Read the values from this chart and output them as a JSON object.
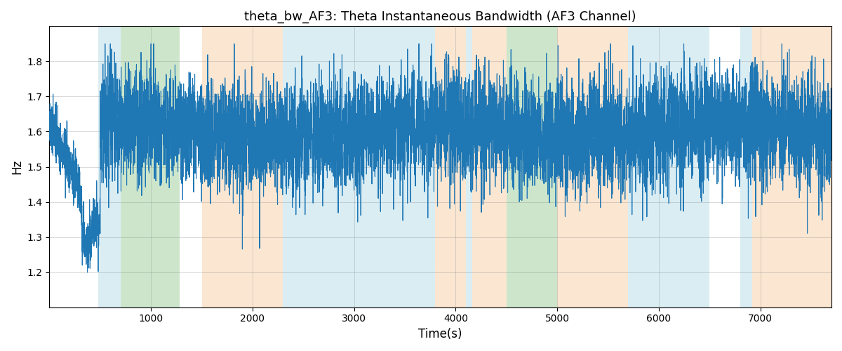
{
  "title": "theta_bw_AF3: Theta Instantaneous Bandwidth (AF3 Channel)",
  "xlabel": "Time(s)",
  "ylabel": "Hz",
  "xlim": [
    0,
    7700
  ],
  "ylim": [
    1.1,
    1.9
  ],
  "line_color": "#1f77b4",
  "line_width": 0.8,
  "colored_bands": [
    {
      "xmin": 480,
      "xmax": 700,
      "color": "#add8e6",
      "alpha": 0.45
    },
    {
      "xmin": 700,
      "xmax": 1280,
      "color": "#90c98c",
      "alpha": 0.45
    },
    {
      "xmin": 1500,
      "xmax": 2300,
      "color": "#f5c99a",
      "alpha": 0.45
    },
    {
      "xmin": 2300,
      "xmax": 3800,
      "color": "#add8e6",
      "alpha": 0.45
    },
    {
      "xmin": 3800,
      "xmax": 4100,
      "color": "#f5c99a",
      "alpha": 0.45
    },
    {
      "xmin": 4100,
      "xmax": 4160,
      "color": "#add8e6",
      "alpha": 0.45
    },
    {
      "xmin": 4160,
      "xmax": 4500,
      "color": "#f5c99a",
      "alpha": 0.45
    },
    {
      "xmin": 4500,
      "xmax": 5000,
      "color": "#90c98c",
      "alpha": 0.45
    },
    {
      "xmin": 5000,
      "xmax": 5700,
      "color": "#f5c99a",
      "alpha": 0.45
    },
    {
      "xmin": 5700,
      "xmax": 6500,
      "color": "#add8e6",
      "alpha": 0.45
    },
    {
      "xmin": 6800,
      "xmax": 6920,
      "color": "#add8e6",
      "alpha": 0.45
    },
    {
      "xmin": 6920,
      "xmax": 7700,
      "color": "#f5c99a",
      "alpha": 0.45
    }
  ],
  "seed": 42,
  "n_points": 7700,
  "title_fontsize": 13
}
